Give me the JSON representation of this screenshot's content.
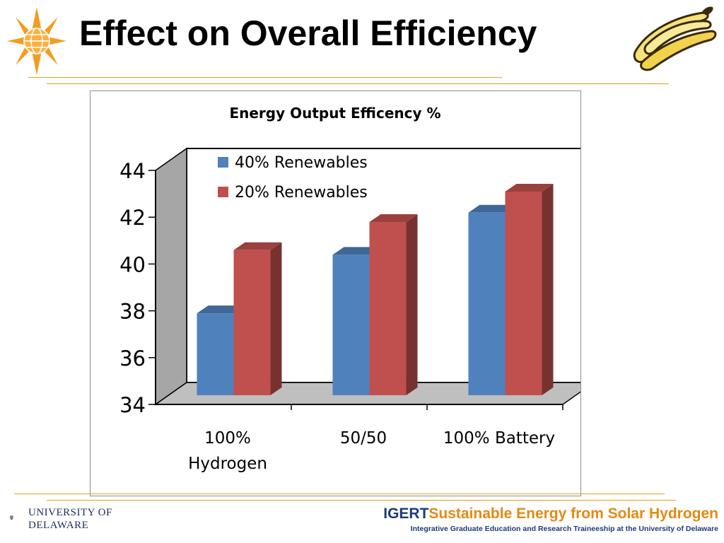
{
  "slide": {
    "title": "Effect on Overall Efficiency"
  },
  "footer": {
    "university_line1": "UNIVERSITY OF",
    "university_line2": "DELAWARE",
    "program_prefix": "IGERT",
    "program_title": "Sustainable Energy from Solar Hydrogen",
    "program_subtitle": "Integrative Graduate Education and Research Traineeship at the University of Delaware"
  },
  "icons": {
    "header_left": "sun-globe-logo-icon",
    "header_right": "banana-clipart-icon",
    "footer_left": "university-seal-icon"
  },
  "colors": {
    "accent": "#e3a21a",
    "series1": "#4f81bd",
    "series2": "#c0504d"
  },
  "chart_data": {
    "type": "bar",
    "title": "Energy Output Efficency %",
    "categories": [
      "100% Hydrogen",
      "50/50",
      "100% Battery"
    ],
    "category_lines": [
      [
        "100%",
        "Hydrogen"
      ],
      [
        "50/50"
      ],
      [
        "100% Battery"
      ]
    ],
    "series": [
      {
        "name": "40% Renewables",
        "values": [
          37.5,
          40.0,
          41.8
        ]
      },
      {
        "name": "20% Renewables",
        "values": [
          40.2,
          41.4,
          42.7
        ]
      }
    ],
    "ylim": [
      34,
      44
    ],
    "yticks": [
      "34",
      "36",
      "38",
      "40",
      "42",
      "44"
    ],
    "style": "3d-clustered",
    "legend": "top-left"
  }
}
